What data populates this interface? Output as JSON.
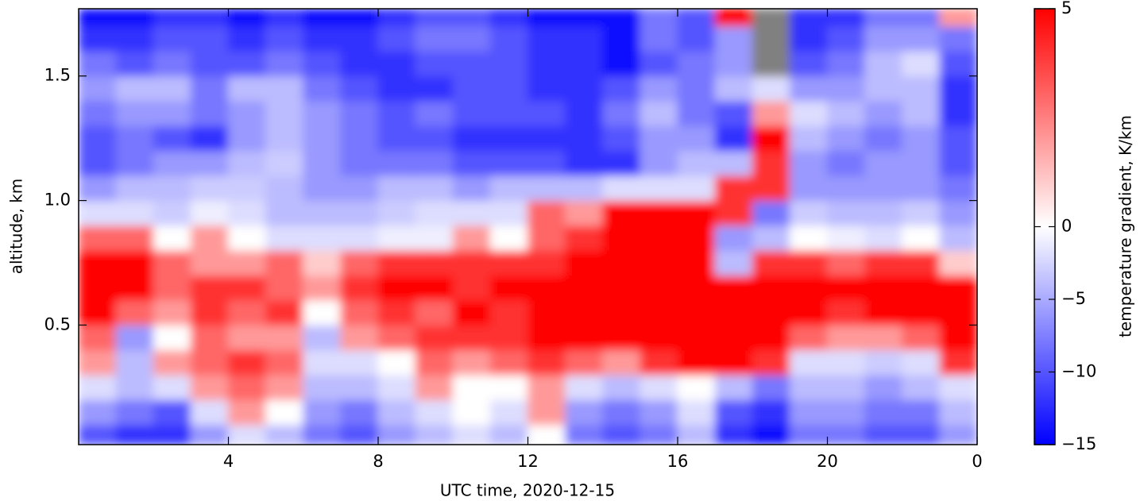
{
  "chart_data": {
    "type": "heatmap",
    "xlabel": "UTC time,  2020-12-15",
    "ylabel": "altitude, km",
    "colorbar_label": "temperature gradient, K/km",
    "x": [
      0,
      1,
      2,
      3,
      4,
      5,
      6,
      7,
      8,
      9,
      10,
      11,
      12,
      13,
      14,
      15,
      16,
      17,
      18,
      19,
      20,
      21,
      22,
      23,
      24
    ],
    "y": [
      0.02,
      0.1,
      0.2,
      0.3,
      0.4,
      0.5,
      0.6,
      0.7,
      0.8,
      0.9,
      1.0,
      1.1,
      1.2,
      1.3,
      1.4,
      1.5,
      1.6,
      1.7,
      1.77
    ],
    "z": [
      [
        -10,
        -12,
        -12,
        -6,
        -2,
        -4,
        -8,
        -10,
        -6,
        -4,
        -2,
        -4,
        0,
        -8,
        -10,
        -8,
        -4,
        -12,
        -14,
        -8,
        -8,
        -10,
        -10,
        -6
      ],
      [
        -6,
        -8,
        -10,
        -2,
        2,
        0,
        -6,
        -8,
        -4,
        -2,
        0,
        -2,
        2,
        -6,
        -8,
        -6,
        -2,
        -10,
        -12,
        -6,
        -6,
        -8,
        -8,
        -4
      ],
      [
        -2,
        -4,
        -2,
        2,
        3,
        2,
        -4,
        -4,
        -2,
        2,
        0,
        0,
        2,
        -2,
        -4,
        -2,
        0,
        -4,
        -8,
        -4,
        -4,
        -6,
        -4,
        -2
      ],
      [
        2,
        -4,
        2,
        3,
        4,
        3,
        -2,
        -2,
        0,
        3,
        2,
        3,
        4,
        3,
        2,
        4,
        5,
        5,
        4,
        -2,
        -2,
        -3,
        -2,
        4
      ],
      [
        3,
        -6,
        0,
        3,
        2,
        2,
        -4,
        2,
        3,
        4,
        4,
        4,
        5,
        5,
        5,
        5,
        5,
        5,
        5,
        3,
        2,
        2,
        3,
        5
      ],
      [
        5,
        3,
        2,
        4,
        3,
        4,
        0,
        3,
        4,
        3,
        5,
        4,
        5,
        5,
        5,
        5,
        5,
        5,
        5,
        5,
        4,
        5,
        5,
        5
      ],
      [
        5,
        5,
        3,
        4,
        4,
        3,
        2,
        4,
        5,
        5,
        4,
        5,
        5,
        5,
        5,
        5,
        5,
        5,
        5,
        5,
        5,
        5,
        5,
        5
      ],
      [
        5,
        5,
        3,
        2,
        2,
        3,
        1,
        3,
        4,
        4,
        4,
        4,
        4,
        5,
        5,
        5,
        5,
        -4,
        4,
        4,
        3,
        4,
        4,
        1
      ],
      [
        3,
        3,
        0,
        2,
        0,
        -2,
        -2,
        -2,
        -1,
        -1,
        2,
        0,
        3,
        4,
        5,
        5,
        5,
        -6,
        -4,
        0,
        -1,
        -2,
        0,
        -4
      ],
      [
        -2,
        -2,
        -3,
        -1,
        -2,
        -4,
        -4,
        -4,
        -3,
        -2,
        -2,
        -2,
        3,
        2,
        5,
        5,
        5,
        4,
        -8,
        -3,
        -4,
        -4,
        -3,
        -6
      ],
      [
        -6,
        -4,
        -4,
        -3,
        -3,
        -4,
        -6,
        -6,
        -4,
        -4,
        -6,
        -4,
        -4,
        -4,
        -2,
        -2,
        -2,
        4,
        4,
        -6,
        -6,
        -6,
        -6,
        -8
      ],
      [
        -10,
        -8,
        -6,
        -6,
        -4,
        -3,
        -6,
        -8,
        -8,
        -8,
        -10,
        -10,
        -10,
        -12,
        -12,
        -6,
        -4,
        -4,
        4,
        -6,
        -8,
        -6,
        -6,
        -10
      ],
      [
        -10,
        -8,
        -10,
        -12,
        -6,
        -4,
        -6,
        -8,
        -10,
        -10,
        -12,
        -12,
        -12,
        -12,
        -10,
        -6,
        -6,
        -12,
        5,
        -4,
        -6,
        -8,
        -6,
        -10
      ],
      [
        -8,
        -6,
        -6,
        -8,
        -6,
        -4,
        -6,
        -8,
        -10,
        -8,
        -10,
        -10,
        -10,
        -12,
        -8,
        -4,
        -8,
        -10,
        2,
        -2,
        -4,
        -6,
        -4,
        -12
      ],
      [
        -6,
        -4,
        -4,
        -8,
        -4,
        -4,
        -8,
        -10,
        -12,
        -12,
        -10,
        -10,
        -12,
        -12,
        -10,
        -6,
        -8,
        -4,
        -2,
        -6,
        -6,
        -4,
        -4,
        -12
      ],
      [
        -8,
        -10,
        -8,
        -10,
        -10,
        -8,
        -10,
        -12,
        -12,
        -10,
        -10,
        -10,
        -12,
        -12,
        -14,
        -10,
        -8,
        -6,
        null,
        -10,
        -8,
        -4,
        -2,
        -10
      ],
      [
        -12,
        -12,
        -10,
        -10,
        -12,
        -10,
        -12,
        -12,
        -10,
        -8,
        -8,
        -10,
        -12,
        -12,
        -14,
        -8,
        -10,
        -6,
        null,
        -12,
        -10,
        -6,
        -6,
        -8
      ],
      [
        -14,
        -14,
        -12,
        -12,
        -14,
        -12,
        -14,
        -14,
        -12,
        -10,
        -10,
        -12,
        -14,
        -14,
        -14,
        -8,
        -10,
        5,
        null,
        -12,
        -12,
        -8,
        -8,
        2
      ]
    ],
    "xlim": [
      0,
      24
    ],
    "xticks": [
      4,
      8,
      12,
      16,
      20,
      {
        "value": 24,
        "label": "0"
      }
    ],
    "ylim": [
      0.02,
      1.77
    ],
    "yticks": [
      0.5,
      {
        "value": 1,
        "label": "1.0"
      },
      1.5
    ],
    "clim": [
      -15,
      5
    ],
    "vcenter": 0,
    "cticks": [
      5,
      0,
      {
        "value": -5,
        "label": "−5"
      },
      {
        "value": -10,
        "label": "−10"
      },
      {
        "value": -15,
        "label": "−15"
      }
    ],
    "colors": [
      "#0000ff",
      "#ffffff",
      "#ff0000"
    ],
    "nan_color": "#808080"
  }
}
